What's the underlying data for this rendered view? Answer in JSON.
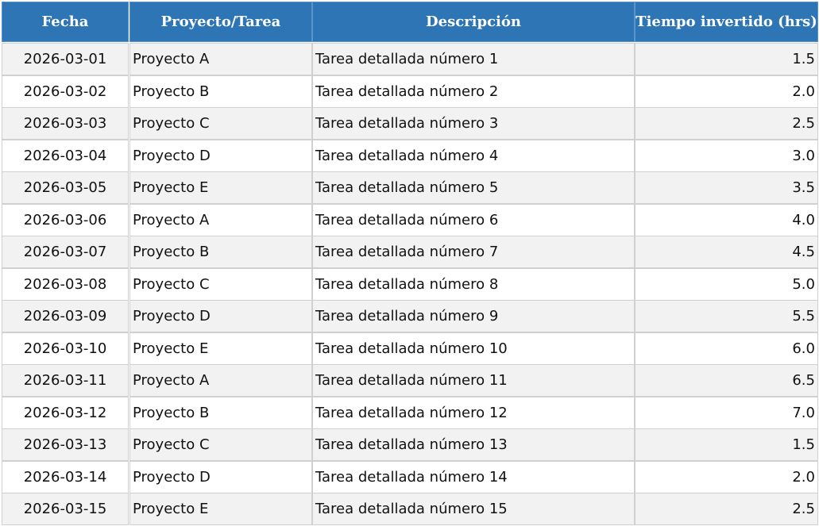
{
  "table": {
    "header": [
      "Fecha",
      "Proyecto/Tarea",
      "Descripción",
      "Tiempo invertido (hrs)"
    ],
    "rows": [
      [
        "2026-03-01",
        "Proyecto A",
        "Tarea detallada número 1",
        "1.5"
      ],
      [
        "2026-03-02",
        "Proyecto B",
        "Tarea detallada número 2",
        "2.0"
      ],
      [
        "2026-03-03",
        "Proyecto C",
        "Tarea detallada número 3",
        "2.5"
      ],
      [
        "2026-03-04",
        "Proyecto D",
        "Tarea detallada número 4",
        "3.0"
      ],
      [
        "2026-03-05",
        "Proyecto E",
        "Tarea detallada número 5",
        "3.5"
      ],
      [
        "2026-03-06",
        "Proyecto A",
        "Tarea detallada número 6",
        "4.0"
      ],
      [
        "2026-03-07",
        "Proyecto B",
        "Tarea detallada número 7",
        "4.5"
      ],
      [
        "2026-03-08",
        "Proyecto C",
        "Tarea detallada número 8",
        "5.0"
      ],
      [
        "2026-03-09",
        "Proyecto D",
        "Tarea detallada número 9",
        "5.5"
      ],
      [
        "2026-03-10",
        "Proyecto E",
        "Tarea detallada número 10",
        "6.0"
      ],
      [
        "2026-03-11",
        "Proyecto A",
        "Tarea detallada número 11",
        "6.5"
      ],
      [
        "2026-03-12",
        "Proyecto B",
        "Tarea detallada número 12",
        "7.0"
      ],
      [
        "2026-03-13",
        "Proyecto C",
        "Tarea detallada número 13",
        "1.5"
      ],
      [
        "2026-03-14",
        "Proyecto D",
        "Tarea detallada número 14",
        "2.0"
      ],
      [
        "2026-03-15",
        "Proyecto E",
        "Tarea detallada número 15",
        "2.5"
      ]
    ]
  }
}
